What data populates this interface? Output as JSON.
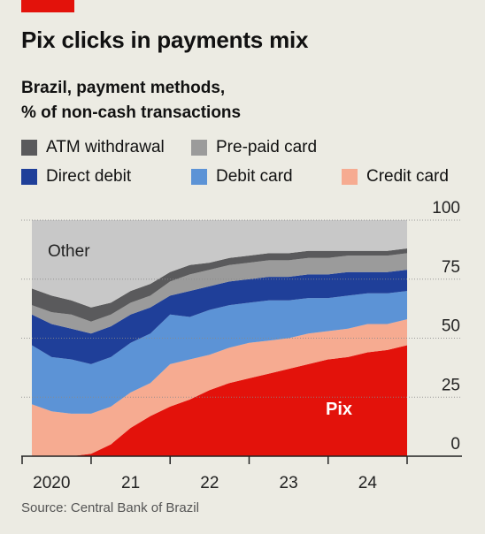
{
  "header": {
    "title": "Pix clicks in payments mix",
    "subtitle_line1": "Brazil, payment methods,",
    "subtitle_line2": "% of non-cash transactions",
    "accent_color": "#e3120b"
  },
  "legend": [
    {
      "label": "ATM withdrawal",
      "color": "#5a5a5c"
    },
    {
      "label": "Pre-paid card",
      "color": "#9b9b9b"
    },
    {
      "label": "Direct debit",
      "color": "#1f3f99"
    },
    {
      "label": "Debit card",
      "color": "#5c93d6"
    },
    {
      "label": "Credit card",
      "color": "#f6ab91"
    }
  ],
  "source": "Source: Central Bank of Brazil",
  "chart_data": {
    "type": "area",
    "stacked": true,
    "x": [
      2019.75,
      2020.0,
      2020.25,
      2020.5,
      2020.75,
      2021.0,
      2021.25,
      2021.5,
      2021.75,
      2022.0,
      2022.25,
      2022.5,
      2022.75,
      2023.0,
      2023.25,
      2023.5,
      2023.75,
      2024.0,
      2024.25,
      2024.5
    ],
    "x_tick_labels": [
      {
        "label": "2020",
        "value": 2020.0
      },
      {
        "label": "21",
        "value": 2021.0
      },
      {
        "label": "22",
        "value": 2022.0
      },
      {
        "label": "23",
        "value": 2023.0
      },
      {
        "label": "24",
        "value": 2024.0
      }
    ],
    "ylim": [
      0,
      100
    ],
    "y_ticks": [
      0,
      25,
      50,
      75,
      100
    ],
    "grid": true,
    "series": [
      {
        "name": "Pix",
        "color": "#e3120b",
        "values": [
          0,
          0,
          0,
          1,
          5,
          12,
          17,
          21,
          24,
          28,
          31,
          33,
          35,
          37,
          39,
          41,
          42,
          44,
          45,
          47
        ]
      },
      {
        "name": "Credit card",
        "color": "#f6ab91",
        "values": [
          22,
          19,
          18,
          17,
          16,
          15,
          14,
          18,
          17,
          15,
          15,
          15,
          14,
          13,
          13,
          12,
          12,
          12,
          11,
          11
        ]
      },
      {
        "name": "Debit card",
        "color": "#5c93d6",
        "values": [
          25,
          23,
          23,
          21,
          21,
          21,
          21,
          21,
          18,
          19,
          18,
          17,
          17,
          16,
          15,
          14,
          14,
          13,
          13,
          12
        ]
      },
      {
        "name": "Direct debit",
        "color": "#1f3f99",
        "values": [
          13,
          14,
          13,
          13,
          13,
          12,
          11,
          8,
          11,
          10,
          10,
          10,
          10,
          10,
          10,
          10,
          10,
          9,
          9,
          9
        ]
      },
      {
        "name": "Pre-paid card",
        "color": "#9b9b9b",
        "values": [
          4,
          5,
          6,
          5,
          5,
          5,
          5,
          6,
          7,
          7,
          7,
          7,
          7,
          7,
          7,
          7,
          7,
          7,
          7,
          7
        ]
      },
      {
        "name": "ATM withdrawal",
        "color": "#5a5a5c",
        "values": [
          7,
          7,
          6,
          6,
          5,
          5,
          5,
          4,
          4,
          3,
          3,
          3,
          3,
          3,
          3,
          3,
          2,
          2,
          2,
          2
        ]
      },
      {
        "name": "Other",
        "color": "#c8c8c8",
        "values": [
          29,
          32,
          34,
          37,
          35,
          30,
          27,
          22,
          19,
          18,
          16,
          15,
          14,
          14,
          13,
          13,
          13,
          13,
          13,
          12
        ]
      }
    ],
    "annotations": [
      {
        "text": "Other",
        "color": "#222222"
      },
      {
        "text": "Pix",
        "color": "#ffffff"
      }
    ]
  }
}
